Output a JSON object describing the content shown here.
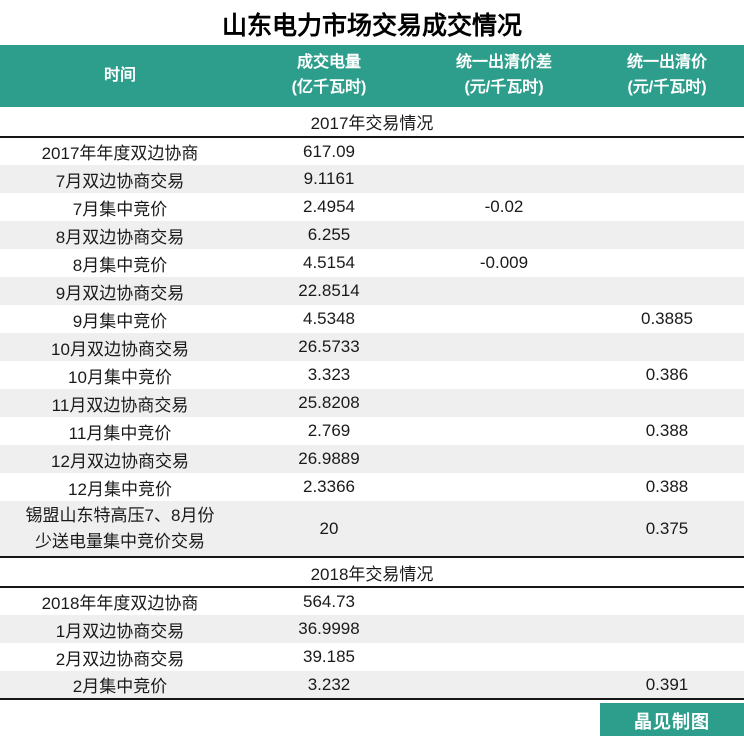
{
  "title": "山东电力市场交易成交情况",
  "colors": {
    "accent_teal": "#2E9E8C",
    "stripe_gray": "#EFEFEF",
    "border_black": "#161616"
  },
  "footer": {
    "credit": "晶见制图"
  },
  "chart_data": {
    "type": "table",
    "title": "山东电力市场交易成交情况",
    "columns": [
      {
        "label": "时间",
        "unit": ""
      },
      {
        "label": "成交电量",
        "unit": "(亿千瓦时)"
      },
      {
        "label": "统一出清价差",
        "unit": "(元/千瓦时)"
      },
      {
        "label": "统一出清价",
        "unit": "(元/千瓦时)"
      }
    ],
    "sections": [
      {
        "label": "2017年交易情况",
        "rows": [
          {
            "time": "2017年年度双边协商",
            "volume": "617.09",
            "price_diff": "",
            "price": ""
          },
          {
            "time": "7月双边协商交易",
            "volume": "9.1161",
            "price_diff": "",
            "price": ""
          },
          {
            "time": "7月集中竞价",
            "volume": "2.4954",
            "price_diff": "-0.02",
            "price": ""
          },
          {
            "time": "8月双边协商交易",
            "volume": "6.255",
            "price_diff": "",
            "price": ""
          },
          {
            "time": "8月集中竞价",
            "volume": "4.5154",
            "price_diff": "-0.009",
            "price": ""
          },
          {
            "time": "9月双边协商交易",
            "volume": "22.8514",
            "price_diff": "",
            "price": ""
          },
          {
            "time": "9月集中竞价",
            "volume": "4.5348",
            "price_diff": "",
            "price": "0.3885"
          },
          {
            "time": "10月双边协商交易",
            "volume": "26.5733",
            "price_diff": "",
            "price": ""
          },
          {
            "time": "10月集中竞价",
            "volume": "3.323",
            "price_diff": "",
            "price": "0.386"
          },
          {
            "time": "11月双边协商交易",
            "volume": "25.8208",
            "price_diff": "",
            "price": ""
          },
          {
            "time": "11月集中竞价",
            "volume": "2.769",
            "price_diff": "",
            "price": "0.388"
          },
          {
            "time": "12月双边协商交易",
            "volume": "26.9889",
            "price_diff": "",
            "price": ""
          },
          {
            "time": "12月集中竞价",
            "volume": "2.3366",
            "price_diff": "",
            "price": "0.388"
          },
          {
            "time": "锡盟山东特高压7、8月份少送电量集中竞价交易",
            "time_lines": [
              "锡盟山东特高压7、8月份",
              "少送电量集中竞价交易"
            ],
            "volume": "20",
            "price_diff": "",
            "price": "0.375"
          }
        ]
      },
      {
        "label": "2018年交易情况",
        "rows": [
          {
            "time": "2018年年度双边协商",
            "volume": "564.73",
            "price_diff": "",
            "price": ""
          },
          {
            "time": "1月双边协商交易",
            "volume": "36.9998",
            "price_diff": "",
            "price": ""
          },
          {
            "time": "2月双边协商交易",
            "volume": "39.185",
            "price_diff": "",
            "price": ""
          },
          {
            "time": "2月集中竞价",
            "volume": "3.232",
            "price_diff": "",
            "price": "0.391"
          }
        ]
      }
    ],
    "credit": "晶见制图"
  }
}
